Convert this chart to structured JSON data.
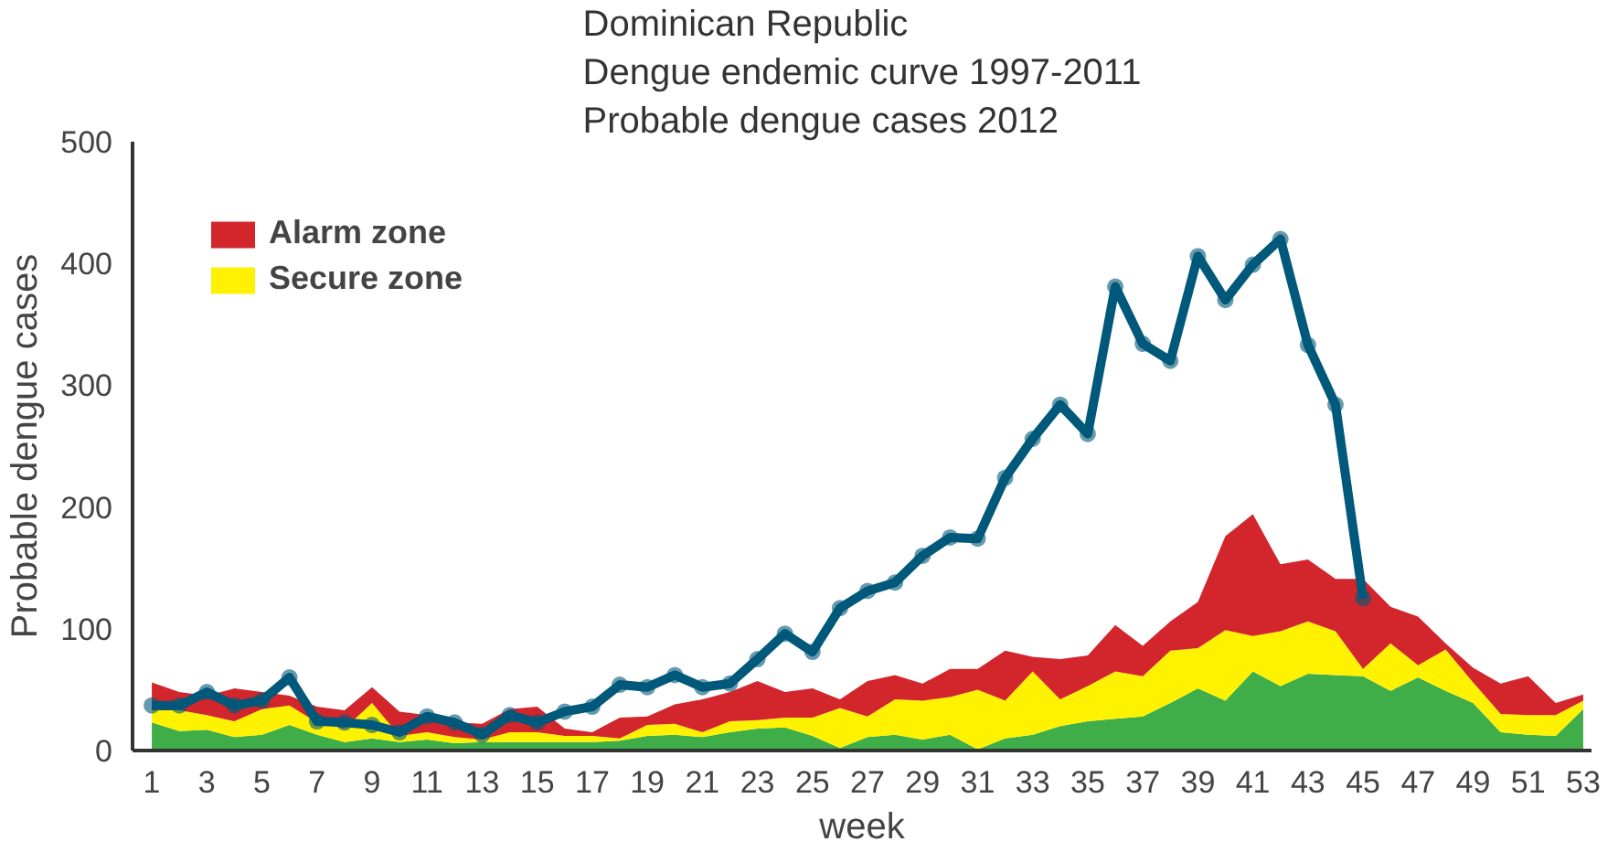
{
  "chart_data": {
    "type": "area",
    "title": "Dominican Republic\nDengue endemic curve 1997-2011\nProbable dengue cases 2012",
    "xlabel": "week",
    "ylabel": "Probable dengue cases",
    "stacked": true,
    "x": [
      1,
      2,
      3,
      4,
      5,
      6,
      7,
      8,
      9,
      10,
      11,
      12,
      13,
      14,
      15,
      16,
      17,
      18,
      19,
      20,
      21,
      22,
      23,
      24,
      25,
      26,
      27,
      28,
      29,
      30,
      31,
      32,
      33,
      34,
      35,
      36,
      37,
      38,
      39,
      40,
      41,
      42,
      43,
      44,
      45,
      46,
      47,
      48,
      49,
      50,
      51,
      52,
      53
    ],
    "series": [
      {
        "color": "#3fae49",
        "values": [
          23,
          16,
          17,
          11,
          13,
          21,
          13,
          7,
          10,
          7,
          9,
          6,
          7,
          7,
          7,
          7,
          7,
          8,
          12,
          13,
          11,
          15,
          18,
          19,
          12,
          2,
          11,
          13,
          9,
          13,
          1,
          10,
          13,
          20,
          24,
          26,
          28,
          39,
          51,
          41,
          65,
          53,
          63,
          62,
          61,
          49,
          60,
          49,
          39,
          15,
          13,
          12,
          34
        ]
      },
      {
        "name": "Secure zone",
        "color": "#fff200",
        "values": [
          10,
          17,
          12,
          13,
          21,
          16,
          10,
          11,
          29,
          5,
          6,
          5,
          2,
          8,
          8,
          5,
          5,
          2,
          9,
          9,
          4,
          9,
          7,
          8,
          15,
          33,
          17,
          29,
          32,
          31,
          49,
          31,
          52,
          22,
          29,
          39,
          33,
          43,
          33,
          58,
          29,
          45,
          43,
          36,
          6,
          39,
          10,
          34,
          17,
          15,
          16,
          17,
          7
        ]
      },
      {
        "name": "Alarm zone",
        "color": "#d2262c",
        "values": [
          23,
          15,
          16,
          27,
          14,
          8,
          13,
          15,
          13,
          20,
          14,
          12,
          13,
          19,
          21,
          6,
          3,
          17,
          7,
          16,
          27,
          24,
          32,
          21,
          24,
          7,
          29,
          20,
          14,
          23,
          17,
          41,
          12,
          33,
          25,
          38,
          25,
          24,
          38,
          77,
          100,
          55,
          51,
          43,
          74,
          30,
          40,
          5,
          12,
          25,
          32,
          10,
          5
        ]
      },
      {
        "type": "line",
        "color": "#00587a",
        "marker": "circle",
        "x": [
          1,
          2,
          3,
          4,
          5,
          6,
          7,
          8,
          9,
          10,
          11,
          12,
          13,
          14,
          15,
          16,
          17,
          18,
          19,
          20,
          21,
          22,
          23,
          24,
          25,
          26,
          27,
          28,
          29,
          30,
          31,
          32,
          33,
          34,
          35,
          36,
          37,
          38,
          39,
          40,
          41,
          42,
          43,
          44,
          45
        ],
        "values": [
          37,
          37,
          48,
          37,
          41,
          60,
          24,
          23,
          21,
          15,
          28,
          23,
          13,
          29,
          23,
          32,
          36,
          54,
          52,
          62,
          52,
          55,
          75,
          96,
          81,
          117,
          131,
          138,
          160,
          175,
          174,
          224,
          256,
          284,
          260,
          381,
          334,
          320,
          406,
          370,
          399,
          420,
          333,
          284,
          125
        ]
      }
    ],
    "xlim": [
      0.3,
      53.3
    ],
    "xticks": [
      1,
      3,
      5,
      7,
      9,
      11,
      13,
      15,
      17,
      19,
      21,
      23,
      25,
      27,
      29,
      31,
      33,
      35,
      37,
      39,
      41,
      43,
      45,
      47,
      49,
      51,
      53
    ],
    "ylim": [
      0,
      500
    ],
    "yticks": [
      0,
      100,
      200,
      300,
      400,
      500
    ],
    "grid": false,
    "legend": "top left"
  }
}
